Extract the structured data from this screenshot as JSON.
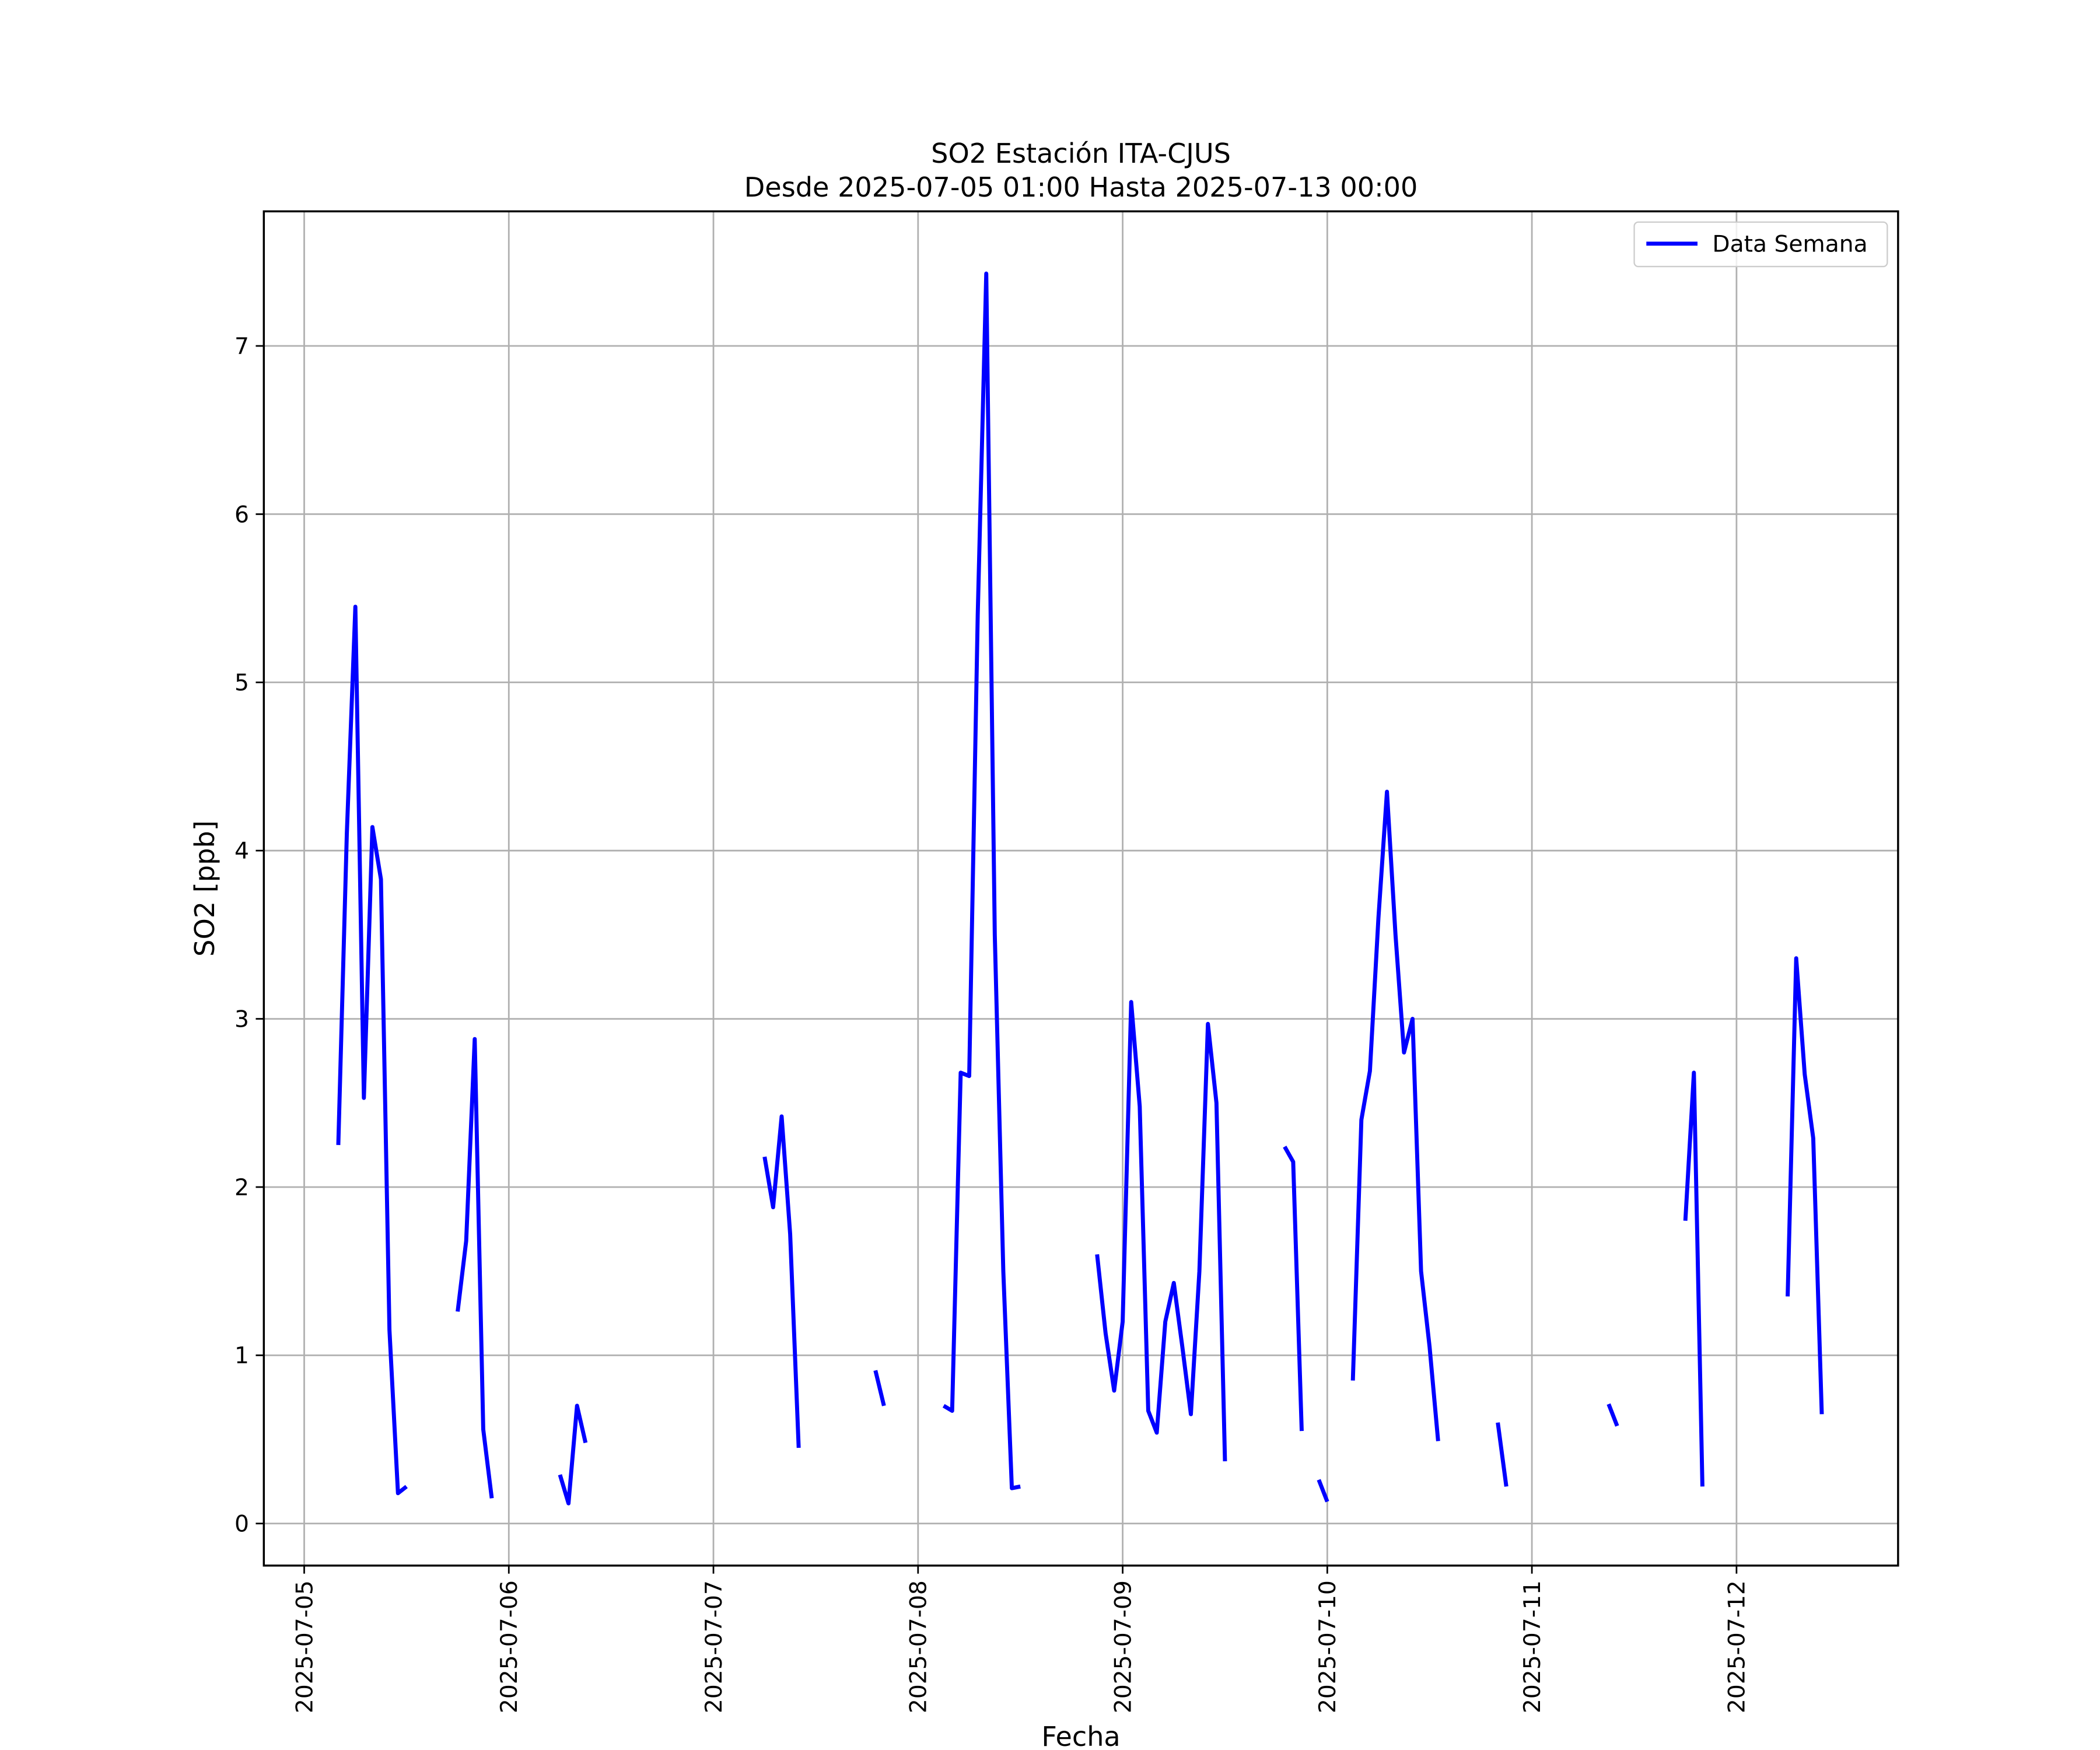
{
  "chart_data": {
    "type": "line",
    "title": "SO2 Estación ITA-CJUS",
    "subtitle": "Desde 2025-07-05 01:00 Hasta 2025-07-13 00:00",
    "x_label": "Fecha",
    "y_label": "SO2 [ppb]",
    "legend": "upper right",
    "grid": true,
    "x": [
      "2025-07-05 04:00",
      "2025-07-05 05:00",
      "2025-07-05 06:00",
      "2025-07-05 07:00",
      "2025-07-05 08:00",
      "2025-07-05 09:00",
      "2025-07-05 10:00",
      "2025-07-05 11:00",
      "2025-07-05 12:00",
      "2025-07-05 13:00",
      "2025-07-05 18:00",
      "2025-07-05 19:00",
      "2025-07-05 20:00",
      "2025-07-05 21:00",
      "2025-07-05 22:00",
      "2025-07-05 23:00",
      "2025-07-06 06:00",
      "2025-07-06 07:00",
      "2025-07-06 08:00",
      "2025-07-06 09:00",
      "2025-07-06 10:00",
      "2025-07-07 06:00",
      "2025-07-07 07:00",
      "2025-07-07 08:00",
      "2025-07-07 09:00",
      "2025-07-07 10:00",
      "2025-07-07 11:00",
      "2025-07-07 19:00",
      "2025-07-07 20:00",
      "2025-07-07 21:00",
      "2025-07-08 03:00",
      "2025-07-08 04:00",
      "2025-07-08 05:00",
      "2025-07-08 06:00",
      "2025-07-08 07:00",
      "2025-07-08 08:00",
      "2025-07-08 09:00",
      "2025-07-08 10:00",
      "2025-07-08 11:00",
      "2025-07-08 12:00",
      "2025-07-08 13:00",
      "2025-07-08 21:00",
      "2025-07-08 22:00",
      "2025-07-08 23:00",
      "2025-07-09 00:00",
      "2025-07-09 01:00",
      "2025-07-09 02:00",
      "2025-07-09 03:00",
      "2025-07-09 04:00",
      "2025-07-09 05:00",
      "2025-07-09 06:00",
      "2025-07-09 07:00",
      "2025-07-09 08:00",
      "2025-07-09 09:00",
      "2025-07-09 10:00",
      "2025-07-09 11:00",
      "2025-07-09 12:00",
      "2025-07-09 13:00",
      "2025-07-09 19:00",
      "2025-07-09 20:00",
      "2025-07-09 21:00",
      "2025-07-09 22:00",
      "2025-07-09 23:00",
      "2025-07-10 00:00",
      "2025-07-10 01:00",
      "2025-07-10 03:00",
      "2025-07-10 04:00",
      "2025-07-10 05:00",
      "2025-07-10 06:00",
      "2025-07-10 07:00",
      "2025-07-10 08:00",
      "2025-07-10 09:00",
      "2025-07-10 10:00",
      "2025-07-10 11:00",
      "2025-07-10 12:00",
      "2025-07-10 13:00",
      "2025-07-10 14:00",
      "2025-07-10 20:00",
      "2025-07-10 21:00",
      "2025-07-10 22:00",
      "2025-07-11 09:00",
      "2025-07-11 10:00",
      "2025-07-11 11:00",
      "2025-07-11 18:00",
      "2025-07-11 19:00",
      "2025-07-11 20:00",
      "2025-07-11 21:00",
      "2025-07-12 06:00",
      "2025-07-12 07:00",
      "2025-07-12 08:00",
      "2025-07-12 09:00",
      "2025-07-12 10:00"
    ],
    "series": [
      {
        "name": "Data Semana",
        "color": "#0000ff",
        "values": [
          2.25,
          4.1,
          5.45,
          2.53,
          4.14,
          3.83,
          1.15,
          0.18,
          0.22,
          null,
          1.26,
          1.68,
          2.88,
          0.56,
          0.15,
          null,
          0.29,
          0.12,
          0.7,
          0.48,
          null,
          2.18,
          1.88,
          2.42,
          1.72,
          0.45,
          null,
          0.91,
          0.7,
          null,
          0.7,
          0.67,
          2.68,
          2.66,
          5.4,
          7.43,
          3.5,
          1.5,
          0.21,
          0.22,
          null,
          1.6,
          1.13,
          0.79,
          1.2,
          3.1,
          2.48,
          0.67,
          0.54,
          1.2,
          1.43,
          1.05,
          0.65,
          1.5,
          2.97,
          2.5,
          0.37,
          null,
          2.24,
          2.15,
          0.55,
          null,
          0.26,
          0.13,
          null,
          0.85,
          2.4,
          2.69,
          3.6,
          4.35,
          3.5,
          2.8,
          3.0,
          1.5,
          1.05,
          0.49,
          null,
          0.6,
          0.22,
          null,
          0.71,
          0.58,
          null,
          1.8,
          2.68,
          0.22,
          null,
          1.35,
          3.36,
          2.67,
          2.29,
          0.65
        ]
      }
    ],
    "xlim": [
      "2025-07-04 19:16",
      "2025-07-12 18:57"
    ],
    "xticks": [
      "2025-07-05",
      "2025-07-06",
      "2025-07-07",
      "2025-07-08",
      "2025-07-09",
      "2025-07-10",
      "2025-07-11",
      "2025-07-12"
    ],
    "ylim": [
      -0.25,
      7.8
    ],
    "yticks": [
      0,
      1,
      2,
      3,
      4,
      5,
      6,
      7
    ]
  }
}
